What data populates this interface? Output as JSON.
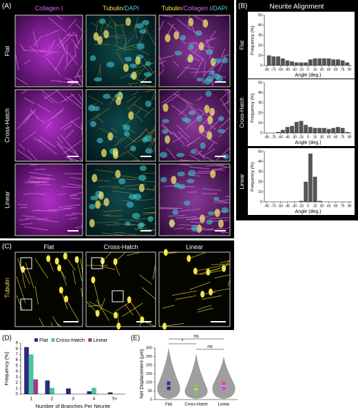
{
  "panel_a": {
    "label": "(A)",
    "columns": [
      [
        {
          "text": "Collagen I",
          "color": "#e066ff"
        }
      ],
      [
        {
          "text": "Tubulin",
          "color": "#ffe84a"
        },
        {
          "text": "/DAPI",
          "color": "#4fd6e0"
        }
      ],
      [
        {
          "text": "Tubulin",
          "color": "#ffe84a"
        },
        {
          "text": "/Collagen I",
          "color": "#e066ff"
        },
        {
          "text": "/DAPI",
          "color": "#4fd6e0"
        }
      ]
    ],
    "rows": [
      "Flat",
      "Cross-Hatch",
      "Linear"
    ]
  },
  "panel_b": {
    "label": "(B)",
    "title": "Neurite Alignment",
    "rows": [
      "Flat",
      "Cross-Hatch",
      "Linear"
    ]
  },
  "panel_c": {
    "label": "(C)",
    "stain": "Tubulin",
    "columns": [
      "Flat",
      "Cross-Hatch",
      "Linear"
    ]
  },
  "panel_d_label": "(D)",
  "panel_e_label": "(E)",
  "chart_data": [
    {
      "type": "histogram",
      "x_label": "Angle (deg.)",
      "y_label": "Frequency (%)",
      "color": "#555555",
      "bins": [
        -90,
        -80,
        -70,
        -60,
        -50,
        -40,
        -30,
        -20,
        -10,
        0,
        10,
        20,
        30,
        40,
        50,
        60,
        70,
        80,
        90
      ],
      "values": [
        10,
        9,
        9,
        7,
        5,
        4,
        3,
        3,
        3,
        6,
        7,
        7,
        7,
        7,
        6,
        6,
        5,
        3
      ],
      "xlim": [
        -95,
        95
      ],
      "xticks": [
        -90,
        -75,
        -60,
        -45,
        -30,
        -15,
        0,
        15,
        30,
        45,
        60,
        75,
        90
      ],
      "ylim": [
        0,
        50
      ],
      "yticks": [
        0,
        10,
        20,
        30,
        40,
        50
      ]
    },
    {
      "type": "histogram",
      "x_label": "Angle (deg.)",
      "y_label": "Frequency (%)",
      "color": "#555555",
      "bins": [
        -90,
        -80,
        -70,
        -60,
        -50,
        -40,
        -30,
        -20,
        -10,
        0,
        10,
        20,
        30,
        40,
        50,
        60,
        70,
        80,
        90
      ],
      "values": [
        0,
        0,
        1,
        3,
        6,
        7,
        11,
        12,
        8,
        6,
        5,
        5,
        5,
        4,
        5,
        6,
        5,
        1
      ],
      "xlim": [
        -95,
        95
      ],
      "xticks": [
        -90,
        -75,
        -60,
        -45,
        -30,
        -15,
        0,
        15,
        30,
        45,
        60,
        75,
        90
      ],
      "ylim": [
        0,
        50
      ],
      "yticks": [
        0,
        10,
        20,
        30,
        40,
        50
      ]
    },
    {
      "type": "histogram",
      "x_label": "Angle (deg.)",
      "y_label": "Frequency (%)",
      "color": "#555555",
      "bins": [
        -90,
        -80,
        -70,
        -60,
        -50,
        -40,
        -30,
        -20,
        -10,
        0,
        10,
        20,
        30,
        40,
        50,
        60,
        70,
        80,
        90
      ],
      "values": [
        0,
        0,
        0,
        0,
        0,
        0,
        0,
        1,
        20,
        48,
        25,
        1,
        0,
        0,
        0,
        0,
        0,
        0
      ],
      "xlim": [
        -95,
        95
      ],
      "xticks": [
        -90,
        -75,
        -60,
        -45,
        -30,
        -15,
        0,
        15,
        30,
        45,
        60,
        75,
        90
      ],
      "ylim": [
        0,
        50
      ],
      "yticks": [
        0,
        10,
        20,
        30,
        40,
        50
      ]
    },
    {
      "type": "bar",
      "x_label": "Number of Branches Per Neurite",
      "y_label": "Frequency (%)",
      "legend": "top",
      "categories": [
        "1",
        "2",
        "3",
        "4",
        "5+"
      ],
      "series": [
        {
          "name": "Flat",
          "color": "#2b2a7c",
          "values": [
            8.3,
            2.4,
            1.0,
            0.5,
            0.3
          ]
        },
        {
          "name": "Cross-Hatch",
          "color": "#4cc3a0",
          "values": [
            7.0,
            1.1,
            0,
            1.1,
            0
          ]
        },
        {
          "name": "Linear",
          "color": "#9c3b8d",
          "values": [
            2.6,
            0,
            0,
            0,
            0
          ]
        }
      ],
      "ylim": [
        0,
        9
      ],
      "yticks": [
        0,
        1,
        2,
        3,
        4,
        5,
        6,
        7,
        8,
        9
      ]
    },
    {
      "type": "violin",
      "y_label": "Net Displacement (μm)",
      "violin_color": "#9e9e9e",
      "categories": [
        "Flat",
        "Cross-Hatch",
        "Linear"
      ],
      "box_colors": [
        "#2e3192",
        "#8dc63f",
        "#e040c8"
      ],
      "min": [
        5,
        5,
        5
      ],
      "q1": [
        55,
        40,
        55
      ],
      "median": [
        80,
        60,
        80
      ],
      "q3": [
        105,
        85,
        105
      ],
      "max": [
        295,
        260,
        245
      ],
      "annotations": [
        "ns",
        "*",
        "ns"
      ],
      "ylim": [
        0,
        300
      ],
      "yticks": [
        0,
        50,
        100,
        150,
        200,
        250,
        300
      ]
    }
  ]
}
